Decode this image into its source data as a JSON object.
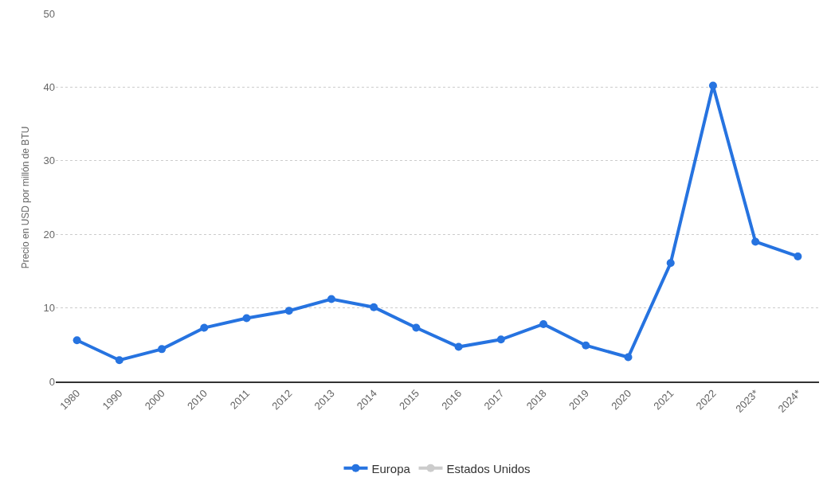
{
  "chart_data": {
    "type": "line",
    "ylabel": "Precio en USD por millón de BTU",
    "categories": [
      "1980",
      "1990",
      "2000",
      "2010",
      "2011",
      "2012",
      "2013",
      "2014",
      "2015",
      "2016",
      "2017",
      "2018",
      "2019",
      "2020",
      "2021",
      "2022",
      "2023*",
      "2024*"
    ],
    "series": [
      {
        "name": "Europa",
        "color": "#2673e0",
        "values": [
          5.6,
          2.9,
          4.4,
          7.3,
          8.6,
          9.6,
          11.2,
          10.1,
          7.3,
          4.7,
          5.7,
          7.8,
          4.9,
          3.3,
          16.1,
          40.2,
          19.0,
          17.0
        ]
      },
      {
        "name": "Estados Unidos",
        "color": "#cccccc",
        "values": [
          null,
          null,
          null,
          null,
          null,
          null,
          null,
          null,
          null,
          null,
          null,
          null,
          null,
          null,
          null,
          null,
          null,
          null
        ]
      }
    ],
    "ylim": [
      0,
      50
    ],
    "yticks": [
      0,
      10,
      20,
      30,
      40,
      50
    ],
    "grid": "y",
    "legend": "bottom",
    "marker": "circle",
    "line_style": "solid"
  }
}
